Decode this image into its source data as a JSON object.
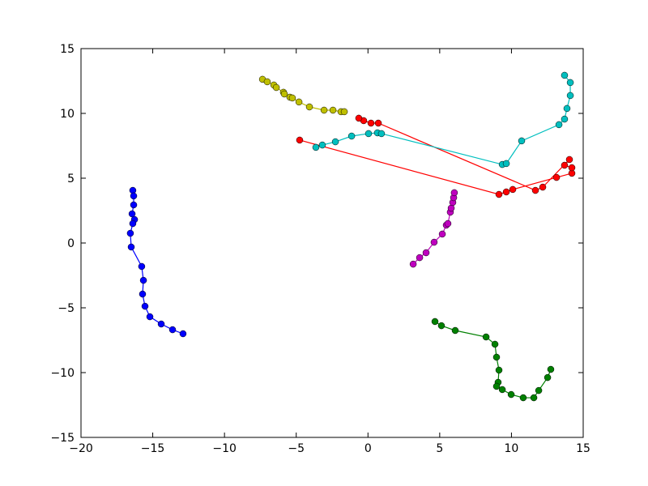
{
  "chart_data": {
    "type": "line",
    "xlim": [
      -20,
      15
    ],
    "ylim": [
      -15,
      15
    ],
    "xticks": [
      {
        "value": -20,
        "label": "−20"
      },
      {
        "value": -15,
        "label": "−15"
      },
      {
        "value": -10,
        "label": "−10"
      },
      {
        "value": -5,
        "label": "−5"
      },
      0,
      5,
      10,
      15
    ],
    "yticks": [
      {
        "value": -15,
        "label": "−15"
      },
      {
        "value": -10,
        "label": "−10"
      },
      {
        "value": -5,
        "label": "−5"
      },
      0,
      5,
      10,
      15
    ],
    "series": [
      {
        "color": "#0000ff",
        "x": [
          -16.39,
          -16.33,
          -16.33,
          -16.44,
          -16.27,
          -16.39,
          -16.56,
          -16.5,
          -15.77,
          -15.65,
          -15.71,
          -15.54,
          -15.2,
          -14.41,
          -13.62,
          -12.89
        ],
        "values": [
          4.06,
          3.63,
          2.94,
          2.25,
          1.81,
          1.5,
          0.75,
          -0.31,
          -1.81,
          -2.88,
          -3.94,
          -4.88,
          -5.69,
          -6.25,
          -6.69,
          -7.0
        ]
      },
      {
        "color": "#008000",
        "x": [
          4.67,
          5.12,
          6.08,
          8.23,
          8.85,
          8.96,
          9.13,
          9.07,
          8.96,
          9.36,
          9.98,
          10.82,
          11.56,
          11.9,
          12.52,
          12.74
        ],
        "values": [
          -6.06,
          -6.38,
          -6.75,
          -7.25,
          -7.81,
          -8.81,
          -9.81,
          -10.75,
          -11.06,
          -11.31,
          -11.69,
          -11.94,
          -11.94,
          -11.38,
          -10.38,
          -9.75
        ]
      },
      {
        "color": "#ff0000",
        "x": [
          -4.76,
          9.13,
          9.64,
          10.09,
          13.14,
          14.21,
          14.21,
          13.7,
          14.04,
          12.18,
          11.67,
          0.72,
          0.21,
          -0.3,
          -0.64
        ],
        "values": [
          7.94,
          3.75,
          3.94,
          4.13,
          5.06,
          5.38,
          5.81,
          6.0,
          6.44,
          4.31,
          4.06,
          9.25,
          9.25,
          9.44,
          9.63
        ]
      },
      {
        "color": "#00bfbf",
        "x": [
          -3.63,
          -3.18,
          -2.27,
          -1.14,
          0.04,
          0.66,
          0.94,
          9.36,
          9.64,
          10.71,
          13.31,
          13.7,
          13.87,
          14.1,
          14.1,
          13.7
        ],
        "values": [
          7.38,
          7.56,
          7.81,
          8.25,
          8.44,
          8.5,
          8.44,
          6.06,
          6.13,
          7.88,
          9.13,
          9.56,
          10.38,
          11.38,
          12.38,
          12.94
        ]
      },
      {
        "color": "#bf00bf",
        "x": [
          3.15,
          3.6,
          4.05,
          4.61,
          5.18,
          5.46,
          5.57,
          5.74,
          5.8,
          5.91,
          5.97,
          6.02
        ],
        "values": [
          -1.63,
          -1.13,
          -0.75,
          0.06,
          0.69,
          1.38,
          1.5,
          2.38,
          2.69,
          3.13,
          3.5,
          3.88
        ]
      },
      {
        "color": "#bfbf00",
        "x": [
          -7.35,
          -7.02,
          -6.56,
          -6.39,
          -5.89,
          -5.83,
          -5.44,
          -5.27,
          -4.81,
          -4.08,
          -3.06,
          -2.44,
          -1.88,
          -1.65
        ],
        "values": [
          12.63,
          12.44,
          12.19,
          12.0,
          11.63,
          11.5,
          11.25,
          11.19,
          10.88,
          10.5,
          10.25,
          10.25,
          10.13,
          10.13
        ]
      }
    ]
  }
}
